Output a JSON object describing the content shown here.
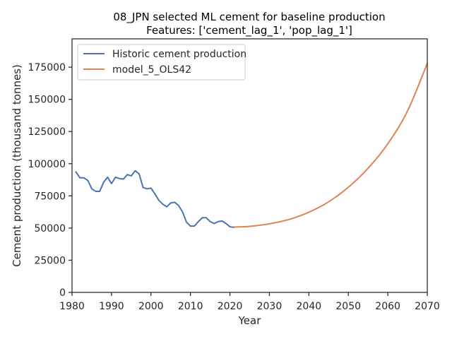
{
  "chart_data": {
    "type": "line",
    "title_line1": "08_JPN selected ML cement for baseline production",
    "title_line2": "Features: ['cement_lag_1', 'pop_lag_1']",
    "xlabel": "Year",
    "ylabel": "Cement production (thousand tonnes)",
    "xlim": [
      1980,
      2070
    ],
    "ylim": [
      0,
      197000
    ],
    "xticks": [
      1980,
      1990,
      2000,
      2010,
      2020,
      2030,
      2040,
      2050,
      2060,
      2070
    ],
    "yticks": [
      0,
      25000,
      50000,
      75000,
      100000,
      125000,
      150000,
      175000
    ],
    "grid": false,
    "legend_position": "top-left",
    "series": [
      {
        "name": "Historic cement production",
        "color": "#4c72b0",
        "x": [
          1981,
          1982,
          1983,
          1984,
          1985,
          1986,
          1987,
          1988,
          1989,
          1990,
          1991,
          1992,
          1993,
          1994,
          1995,
          1996,
          1997,
          1998,
          1999,
          2000,
          2001,
          2002,
          2003,
          2004,
          2005,
          2006,
          2007,
          2008,
          2009,
          2010,
          2011,
          2012,
          2013,
          2014,
          2015,
          2016,
          2017,
          2018,
          2019,
          2020,
          2021
        ],
        "y": [
          93500,
          89000,
          89000,
          87000,
          80500,
          78500,
          78500,
          85500,
          89500,
          84500,
          89500,
          88500,
          88000,
          91500,
          90500,
          94500,
          92000,
          81500,
          80500,
          81000,
          76500,
          71500,
          68500,
          66500,
          69500,
          70000,
          67500,
          62500,
          54500,
          51500,
          51500,
          55000,
          58000,
          58000,
          55000,
          53500,
          55000,
          55500,
          53500,
          51000,
          50500
        ]
      },
      {
        "name": "model_5_OLS42",
        "color": "#dd8452",
        "x": [
          2021,
          2025,
          2030,
          2035,
          2040,
          2045,
          2050,
          2055,
          2060,
          2065,
          2070
        ],
        "y": [
          50800,
          51300,
          53300,
          56700,
          62300,
          70400,
          81700,
          96500,
          115500,
          141000,
          178000
        ]
      }
    ]
  }
}
